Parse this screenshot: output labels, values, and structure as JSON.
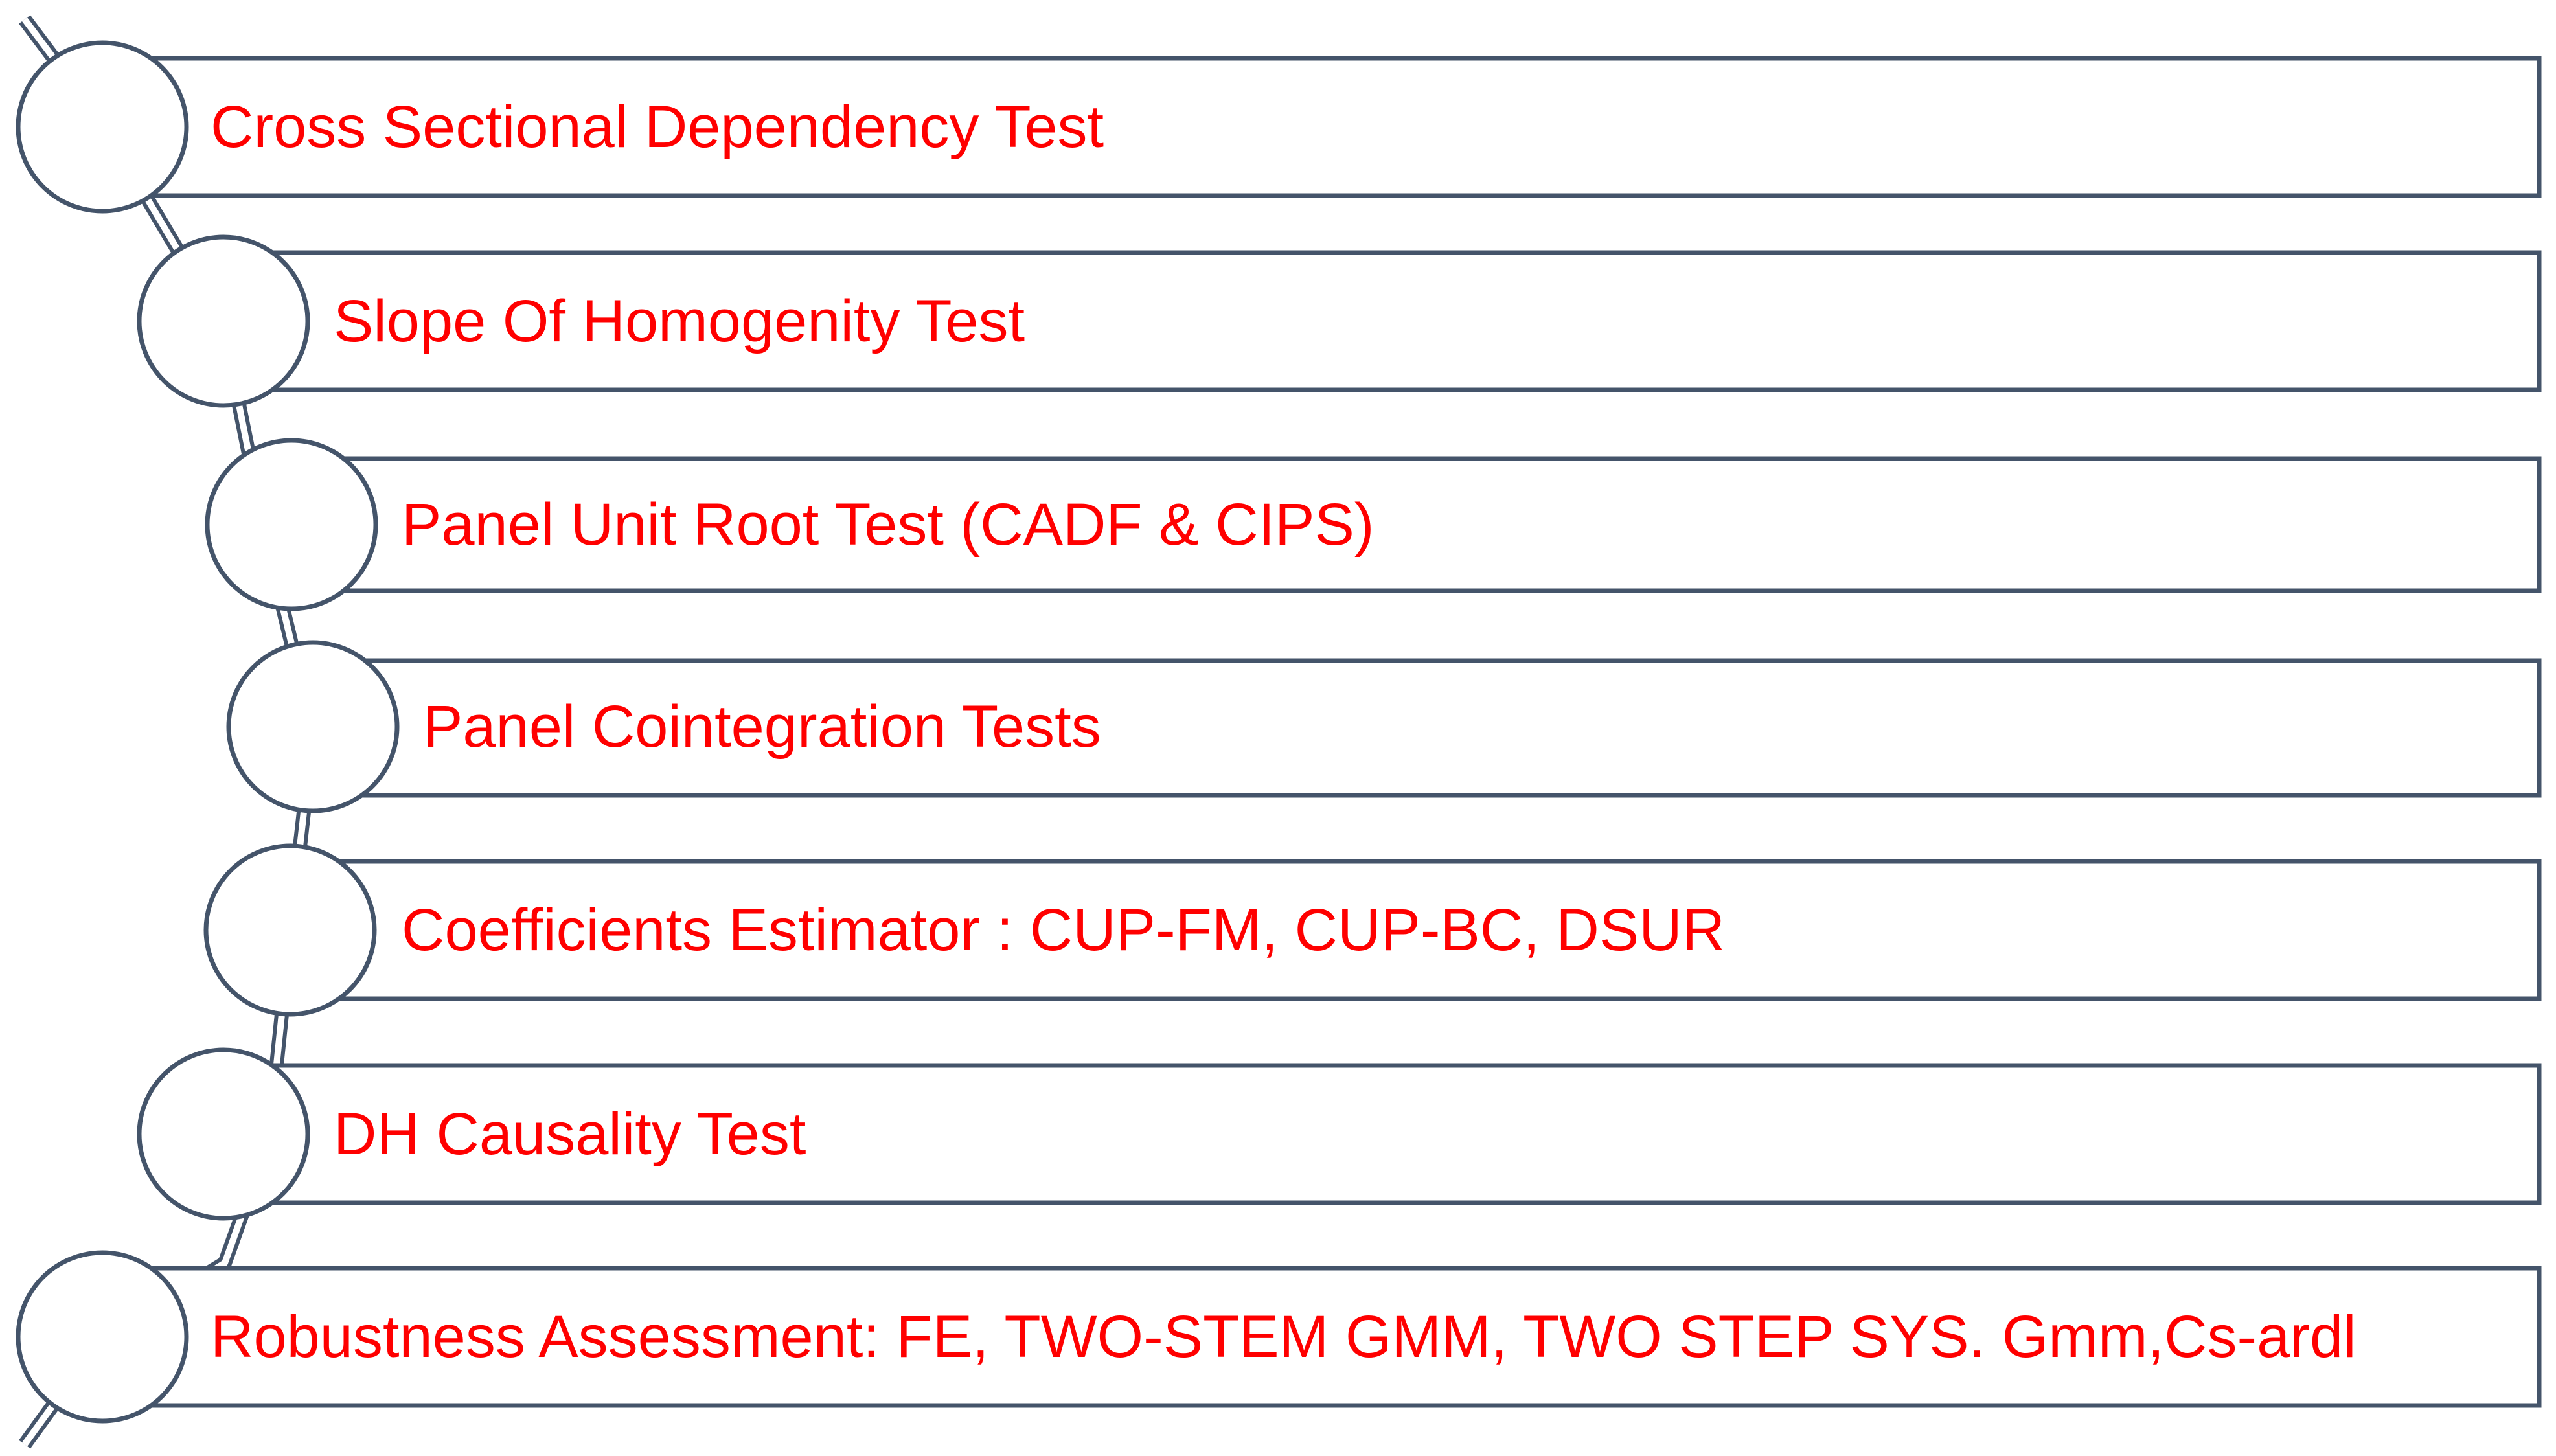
{
  "text_color": "#ff0000",
  "outline_color": "#44546a",
  "steps": [
    {
      "label": "Cross Sectional Dependency Test"
    },
    {
      "label": "Slope Of Homogenity Test"
    },
    {
      "label": "Panel Unit Root Test (CADF & CIPS)"
    },
    {
      "label": "Panel Cointegration Tests"
    },
    {
      "label": "Coefficients Estimator : CUP-FM, CUP-BC, DSUR"
    },
    {
      "label": "DH Causality Test"
    },
    {
      "label": "Robustness Assessment: FE, TWO-STEM GMM, TWO STEP SYS. Gmm,Cs-ardl"
    }
  ]
}
